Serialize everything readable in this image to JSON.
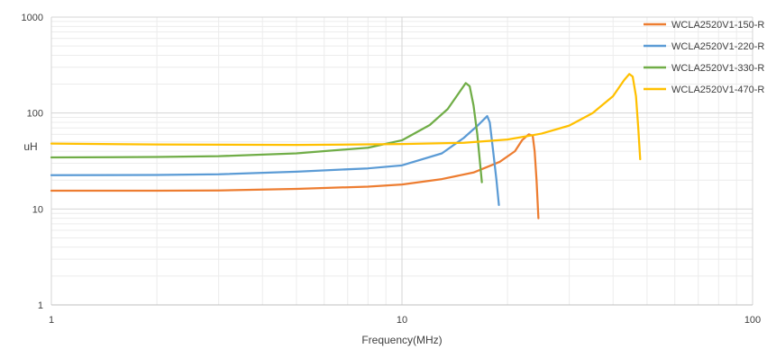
{
  "chart_data": {
    "type": "line",
    "title": "",
    "xlabel": "Frequency(MHz)",
    "ylabel": "uH",
    "x_scale": "log",
    "y_scale": "log",
    "xlim": [
      1,
      100
    ],
    "ylim": [
      1,
      1000
    ],
    "x_ticks": [
      1,
      10,
      100
    ],
    "x_tick_labels": [
      "1",
      "10",
      "100"
    ],
    "y_ticks": [
      1,
      10,
      100,
      1000
    ],
    "y_tick_labels": [
      "1",
      "10",
      "100",
      "1000"
    ],
    "grid": true,
    "legend_position": "top-right",
    "series": [
      {
        "name": "WCLA2520V1-150-R",
        "color": "#ED7D31",
        "points": [
          [
            1,
            15.5
          ],
          [
            2,
            15.5
          ],
          [
            3,
            15.6
          ],
          [
            5,
            16.2
          ],
          [
            8,
            17.1
          ],
          [
            10,
            18
          ],
          [
            13,
            20.5
          ],
          [
            16,
            24
          ],
          [
            19,
            31
          ],
          [
            21,
            40
          ],
          [
            22,
            52
          ],
          [
            23,
            60
          ],
          [
            23.6,
            58
          ],
          [
            23.9,
            40
          ],
          [
            24.2,
            20
          ],
          [
            24.5,
            8
          ]
        ]
      },
      {
        "name": "WCLA2520V1-220-R",
        "color": "#5B9BD5",
        "points": [
          [
            1,
            22.5
          ],
          [
            2,
            22.6
          ],
          [
            3,
            23
          ],
          [
            5,
            24.5
          ],
          [
            8,
            26.5
          ],
          [
            10,
            28.5
          ],
          [
            13,
            38
          ],
          [
            15,
            55
          ],
          [
            16.5,
            75
          ],
          [
            17.5,
            93
          ],
          [
            17.8,
            80
          ],
          [
            18.2,
            40
          ],
          [
            18.6,
            20
          ],
          [
            18.9,
            11
          ]
        ]
      },
      {
        "name": "WCLA2520V1-330-R",
        "color": "#70AD47",
        "points": [
          [
            1,
            34.5
          ],
          [
            2,
            34.8
          ],
          [
            3,
            35.5
          ],
          [
            5,
            38
          ],
          [
            8,
            43.5
          ],
          [
            10,
            52
          ],
          [
            12,
            75
          ],
          [
            13.5,
            110
          ],
          [
            14.5,
            160
          ],
          [
            15.2,
            205
          ],
          [
            15.6,
            190
          ],
          [
            16,
            120
          ],
          [
            16.4,
            60
          ],
          [
            16.9,
            19
          ]
        ]
      },
      {
        "name": "WCLA2520V1-470-R",
        "color": "#FFC000",
        "points": [
          [
            1,
            48
          ],
          [
            2,
            47
          ],
          [
            5,
            46.5
          ],
          [
            10,
            47.5
          ],
          [
            15,
            49
          ],
          [
            20,
            53
          ],
          [
            25,
            61
          ],
          [
            30,
            74
          ],
          [
            35,
            100
          ],
          [
            40,
            150
          ],
          [
            43,
            220
          ],
          [
            44.5,
            255
          ],
          [
            45.5,
            240
          ],
          [
            46.5,
            150
          ],
          [
            47.2,
            70
          ],
          [
            47.8,
            33
          ]
        ]
      }
    ]
  }
}
